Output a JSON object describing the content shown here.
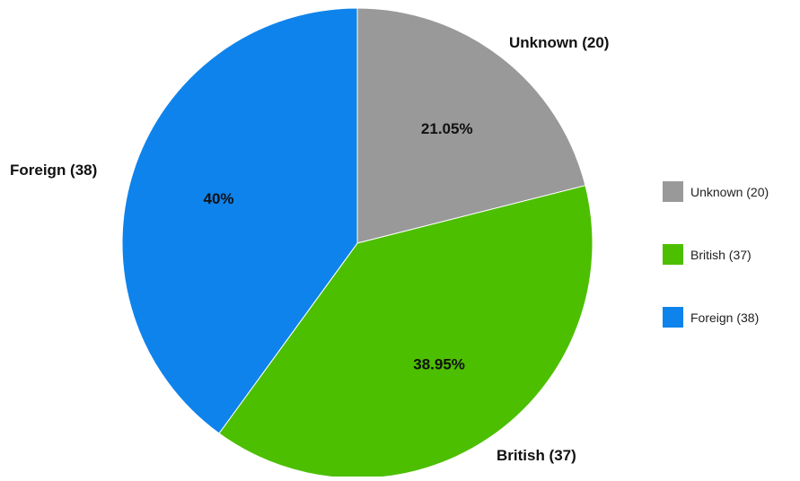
{
  "chart_data": {
    "type": "pie",
    "title": "",
    "slices": [
      {
        "label": "Unknown (20)",
        "value": 20,
        "percent_label": "21.05%",
        "color": "#999999"
      },
      {
        "label": "British (37)",
        "value": 37,
        "percent_label": "38.95%",
        "color": "#4cbf00"
      },
      {
        "label": "Foreign (38)",
        "value": 38,
        "percent_label": "40%",
        "color": "#0e83eb"
      }
    ],
    "start_angle_deg": 0,
    "direction": "clockwise",
    "legend_position": "right"
  }
}
